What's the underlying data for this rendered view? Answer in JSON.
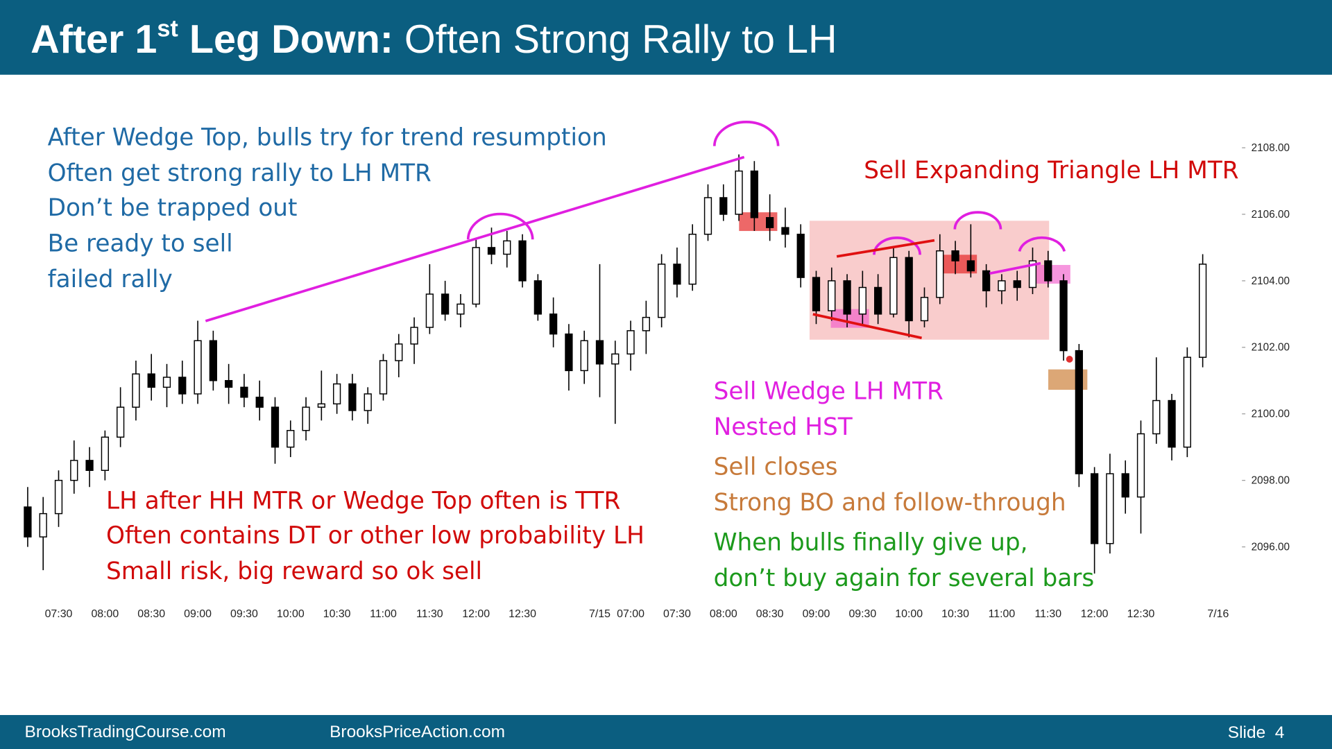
{
  "header": {
    "title": {
      "bold": "After 1",
      "sup": "st",
      "bold2": " Leg Down:",
      "rest": " Often Strong Rally to LH"
    }
  },
  "notes": {
    "blue": [
      "After Wedge Top, bulls try for trend resumption",
      "Often get strong rally to LH MTR",
      "Don’t be trapped out",
      "Be ready to sell",
      "failed rally"
    ],
    "red_top": "Sell Expanding Triangle LH MTR",
    "red": [
      "LH after HH MTR or Wedge Top often is TTR",
      "Often contains DT or other low probability LH",
      "Small risk, big reward so ok sell"
    ],
    "magenta": [
      "Sell Wedge LH MTR",
      "Nested HST"
    ],
    "brown": [
      "Sell closes",
      "Strong BO and follow-through"
    ],
    "green": [
      "When bulls finally give up,",
      "don’t buy again for several bars"
    ]
  },
  "chart_data": {
    "type": "candlestick",
    "categories": [
      null,
      null,
      "07:30",
      null,
      null,
      "08:00",
      null,
      null,
      "08:30",
      null,
      null,
      "09:00",
      null,
      null,
      "09:30",
      null,
      null,
      "10:00",
      null,
      null,
      "10:30",
      null,
      null,
      "11:00",
      null,
      null,
      "11:30",
      null,
      null,
      "12:00",
      null,
      null,
      "12:30",
      null,
      null,
      null,
      null,
      "7/15",
      null,
      "07:00",
      null,
      null,
      "07:30",
      null,
      null,
      "08:00",
      null,
      null,
      "08:30",
      null,
      null,
      "09:00",
      null,
      null,
      "09:30",
      null,
      null,
      "10:00",
      null,
      null,
      "10:30",
      null,
      null,
      "11:00",
      null,
      null,
      "11:30",
      null,
      null,
      "12:00",
      null,
      null,
      "12:30",
      null,
      null,
      null,
      null,
      "7/16"
    ],
    "open": [
      2097.2,
      2096.3,
      2097,
      2098,
      2098.6,
      2098.3,
      2099.3,
      2100.2,
      2101.2,
      2100.8,
      2101.1,
      2100.6,
      2102.2,
      2101,
      2100.8,
      2100.5,
      2100.2,
      2099,
      2099.5,
      2100.2,
      2100.3,
      2100.9,
      2100.1,
      2100.6,
      2101.6,
      2102.1,
      2102.6,
      2103.6,
      2103,
      2103.3,
      2105,
      2104.8,
      2105.2,
      2104,
      2103,
      2102.4,
      2101.3,
      2102.2,
      2101.5,
      2101.8,
      2102.5,
      2102.9,
      2104.5,
      2103.9,
      2105.4,
      2106.5,
      2106,
      2107.3,
      2105.9,
      2105.6,
      2105.4,
      2104.1,
      2103.1,
      2104,
      2103,
      2103.8,
      2103,
      2104.7,
      2102.8,
      2103.5,
      2104.9,
      2104.6,
      2104.3,
      2103.7,
      2104,
      2103.8,
      2104.6,
      2104,
      2101.9,
      2098.2,
      2096.1,
      2098.2,
      2097.5,
      2099.4,
      2100.4,
      2099,
      2101.7,
      null
    ],
    "high": [
      2097.8,
      2097.5,
      2098.3,
      2099.2,
      2099,
      2099.5,
      2100.8,
      2101.6,
      2101.8,
      2101.5,
      2101.6,
      2102.8,
      2102.5,
      2101.5,
      2101.2,
      2101,
      2100.5,
      2099.8,
      2100.5,
      2101.3,
      2101.2,
      2101.2,
      2100.8,
      2101.8,
      2102.4,
      2102.9,
      2104.5,
      2104,
      2103.6,
      2105.3,
      2105.6,
      2105.5,
      2105.4,
      2104.2,
      2103.5,
      2102.7,
      2102.5,
      2104.5,
      2102.2,
      2102.8,
      2103.4,
      2104.8,
      2105,
      2105.7,
      2106.9,
      2106.9,
      2107.8,
      2107.6,
      2106.6,
      2106.2,
      2105.7,
      2104.3,
      2104.4,
      2104.2,
      2104.3,
      2104.2,
      2105,
      2104.9,
      2103.8,
      2105.4,
      2105.2,
      2105.7,
      2104.5,
      2104.2,
      2104.3,
      2105,
      2104.9,
      2104.2,
      2102.1,
      2098.4,
      2098.8,
      2098.6,
      2099.8,
      2101.7,
      2100.6,
      2102,
      2104.8,
      null
    ],
    "low": [
      2096,
      2095.3,
      2096.6,
      2097.6,
      2097.8,
      2098,
      2099,
      2099.8,
      2100.4,
      2100.2,
      2100.3,
      2100.3,
      2100.7,
      2100.3,
      2100.2,
      2099.8,
      2098.5,
      2098.7,
      2099.2,
      2099.8,
      2100,
      2099.8,
      2099.7,
      2100.4,
      2101.1,
      2101.5,
      2102.4,
      2102.8,
      2102.6,
      2103.2,
      2104.5,
      2104.4,
      2103.8,
      2102.8,
      2102,
      2100.7,
      2100.9,
      2100.5,
      2099.7,
      2101.3,
      2101.8,
      2102.6,
      2103.5,
      2103.7,
      2105.2,
      2105.8,
      2105.8,
      2105.5,
      2105.2,
      2105,
      2103.8,
      2102.7,
      2102.8,
      2102.6,
      2102.7,
      2102.7,
      2102.9,
      2102.3,
      2102.6,
      2103.3,
      2104.2,
      2104.1,
      2103.2,
      2103.3,
      2103.4,
      2103.6,
      2103.8,
      2101.6,
      2097.8,
      2095.2,
      2095.8,
      2097,
      2096.4,
      2099.1,
      2098.6,
      2098.7,
      2101.4,
      null
    ],
    "close": [
      2096.3,
      2097,
      2098,
      2098.6,
      2098.3,
      2099.3,
      2100.2,
      2101.2,
      2100.8,
      2101.1,
      2100.6,
      2102.2,
      2101,
      2100.8,
      2100.5,
      2100.2,
      2099,
      2099.5,
      2100.2,
      2100.3,
      2100.9,
      2100.1,
      2100.6,
      2101.6,
      2102.1,
      2102.6,
      2103.6,
      2103,
      2103.3,
      2105,
      2104.8,
      2105.2,
      2104,
      2103,
      2102.4,
      2101.3,
      2102.2,
      2101.5,
      2101.8,
      2102.5,
      2102.9,
      2104.5,
      2103.9,
      2105.4,
      2106.5,
      2106,
      2107.3,
      2105.9,
      2105.6,
      2105.4,
      2104.1,
      2103.1,
      2104,
      2103,
      2103.8,
      2103,
      2104.7,
      2102.8,
      2103.5,
      2104.9,
      2104.6,
      2104.3,
      2103.7,
      2104,
      2103.8,
      2104.6,
      2104,
      2101.9,
      2098.2,
      2096.1,
      2098.2,
      2097.5,
      2099.4,
      2100.4,
      2099,
      2101.7,
      2104.5,
      null
    ],
    "ylim": [
      2094.5,
      2109.5
    ],
    "yticks": [
      {
        "value": 2096,
        "label": "2096.00"
      },
      {
        "value": 2098,
        "label": "2098.00"
      },
      {
        "value": 2100,
        "label": "2100.00"
      },
      {
        "value": 2102,
        "label": "2102.00"
      },
      {
        "value": 2104,
        "label": "2104.00"
      },
      {
        "value": 2106,
        "label": "2106.00"
      },
      {
        "value": 2108,
        "label": "2108.00"
      }
    ],
    "up_color": "#ffffff",
    "down_color": "#000000"
  },
  "footer": {
    "left": "BrooksTradingCourse.com",
    "middle": "BrooksPriceAction.com",
    "slide": "Slide  4"
  }
}
